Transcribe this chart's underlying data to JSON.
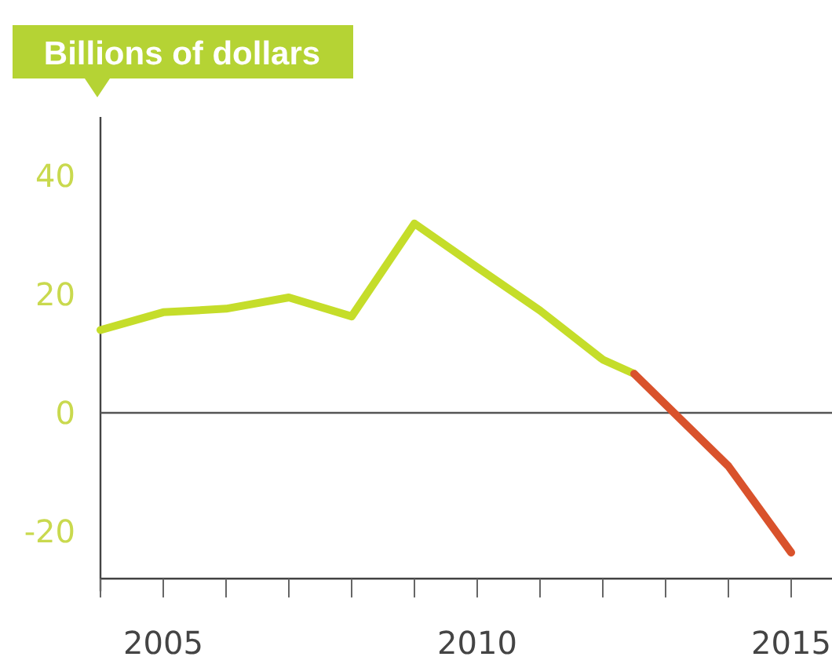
{
  "chart_data": {
    "type": "line",
    "ylabel": "Billions of dollars",
    "xlim": [
      2004,
      2015.65
    ],
    "xticks": [
      {
        "value": 2004,
        "label": null
      },
      2005,
      {
        "value": 2006,
        "label": null
      },
      {
        "value": 2007,
        "label": null
      },
      {
        "value": 2008,
        "label": null
      },
      {
        "value": 2009,
        "label": null
      },
      2010,
      {
        "value": 2011,
        "label": null
      },
      {
        "value": 2012,
        "label": null
      },
      {
        "value": 2013,
        "label": null
      },
      {
        "value": 2014,
        "label": null
      },
      2015
    ],
    "ylim": [
      -28,
      50
    ],
    "yticks": [
      -20,
      0,
      20,
      40
    ],
    "ref_lines": [
      {
        "axis": "y",
        "value": 0,
        "color": "#555555"
      }
    ],
    "series": [
      {
        "color": "#c5dd2a",
        "x": [
          2004,
          2005,
          2006,
          2007,
          2008,
          2009,
          2010,
          2011,
          2012,
          2012.5
        ],
        "values": [
          14,
          17,
          17.6,
          19.5,
          16.3,
          32,
          24.6,
          17.3,
          9,
          6.6
        ]
      },
      {
        "color": "#d9522c",
        "x": [
          2012.5,
          2014,
          2015
        ],
        "values": [
          6.6,
          -9,
          -23.6
        ]
      }
    ],
    "grid": false,
    "marker": "none",
    "line_style": "solid"
  }
}
